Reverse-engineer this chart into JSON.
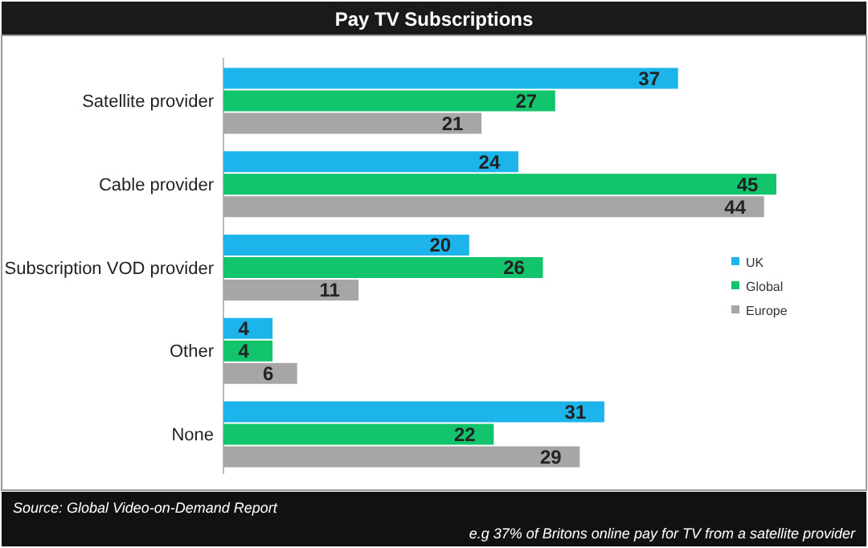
{
  "chart_data": {
    "type": "bar",
    "orientation": "horizontal",
    "title": "Pay TV Subscriptions",
    "categories": [
      "Satellite provider",
      "Cable provider",
      "Subscription VOD provider",
      "Other",
      "None"
    ],
    "series": [
      {
        "name": "UK",
        "color": "#1cb4ea",
        "values": [
          37,
          24,
          20,
          4,
          31
        ]
      },
      {
        "name": "Global",
        "color": "#12c46c",
        "values": [
          27,
          45,
          26,
          4,
          22
        ]
      },
      {
        "name": "Europe",
        "color": "#a6a6a6",
        "values": [
          21,
          44,
          11,
          6,
          29
        ]
      }
    ],
    "data_labels": true,
    "legend": "right",
    "grid": false,
    "annotations": [
      "Source: Global Video-on-Demand Report",
      "e.g 37% of Britons online pay for TV from a satellite provider"
    ]
  }
}
